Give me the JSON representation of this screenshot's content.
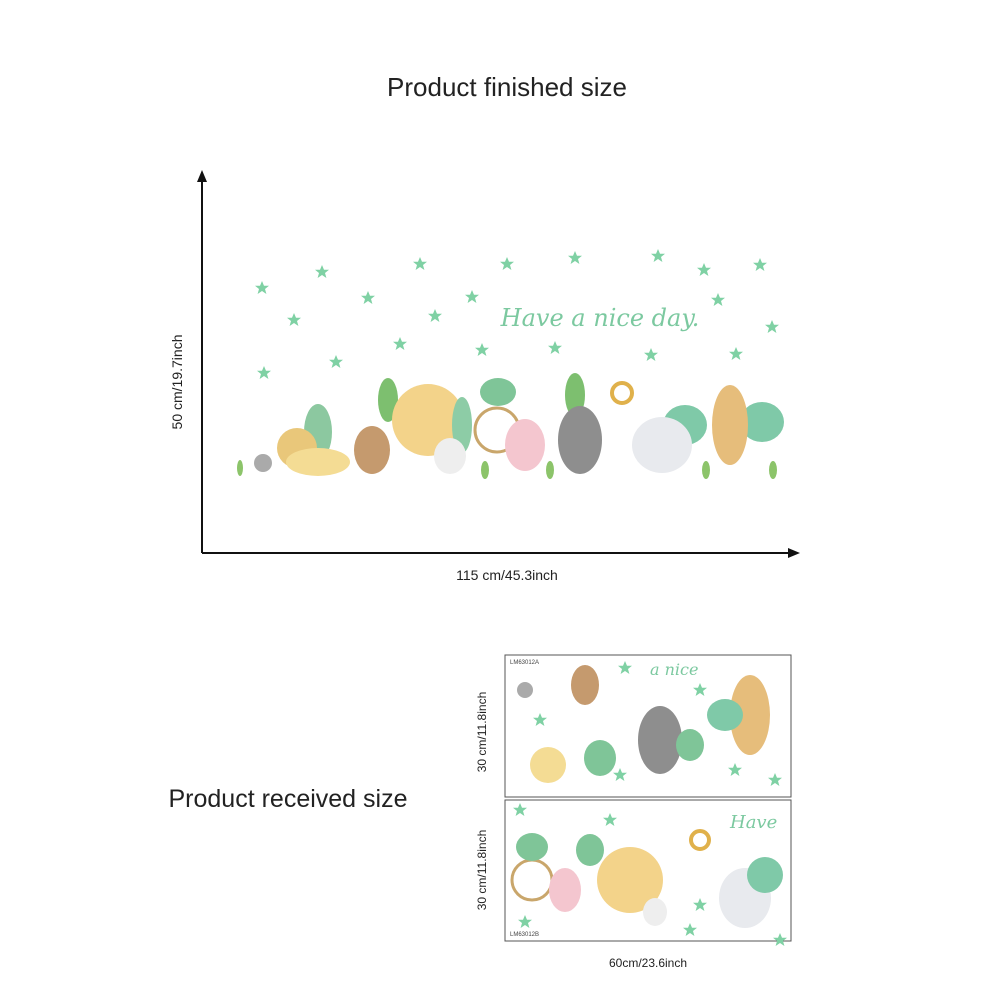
{
  "header": {
    "title": "Product finished size"
  },
  "finished": {
    "height_label": "50 cm/19.7inch",
    "width_label": "115 cm/45.3inch",
    "caption": "Have a nice day."
  },
  "received": {
    "title": "Product received size",
    "width_label": "60cm/23.6inch",
    "sheets": [
      {
        "code": "LM63012A",
        "height_label": "30 cm/11.8inch",
        "text": "a nice"
      },
      {
        "code": "LM63012B",
        "height_label": "30 cm/11.8inch",
        "text": "Have"
      }
    ]
  }
}
